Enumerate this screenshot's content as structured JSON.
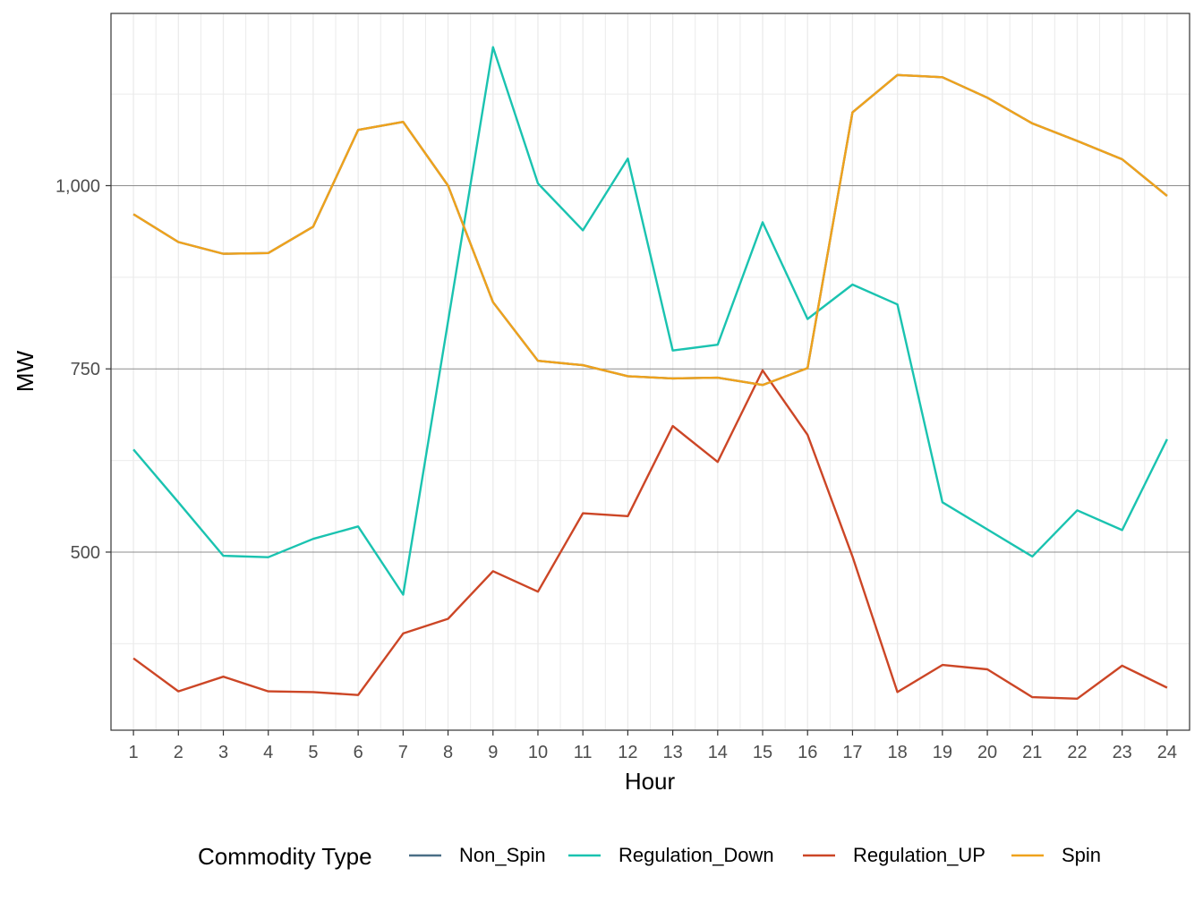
{
  "chart_data": {
    "type": "line",
    "xlabel": "Hour",
    "ylabel": "MW",
    "x": [
      1,
      2,
      3,
      4,
      5,
      6,
      7,
      8,
      9,
      10,
      11,
      12,
      13,
      14,
      15,
      16,
      17,
      18,
      19,
      20,
      21,
      22,
      23,
      24
    ],
    "x_tick_labels": [
      "1",
      "2",
      "3",
      "4",
      "5",
      "6",
      "7",
      "8",
      "9",
      "10",
      "11",
      "12",
      "13",
      "14",
      "15",
      "16",
      "17",
      "18",
      "19",
      "20",
      "21",
      "22",
      "23",
      "24"
    ],
    "y_ticks": [
      500,
      750,
      1000
    ],
    "y_tick_labels": [
      "500",
      "750",
      "1,000"
    ],
    "xlim": [
      0.5,
      24.5
    ],
    "ylim": [
      257,
      1235
    ],
    "grid": true,
    "legend": {
      "title": "Commodity Type",
      "position": "bottom"
    },
    "series": [
      {
        "name": "Non_Spin",
        "color": "#4a6f86",
        "values": [
          961,
          923,
          907,
          908,
          944,
          1076,
          1087,
          1000,
          841,
          761,
          755,
          740,
          737,
          738,
          728,
          751,
          1100,
          1151,
          1148,
          1120,
          1085,
          1061,
          1036,
          986
        ]
      },
      {
        "name": "Regulation_Down",
        "color": "#1ac3b0",
        "values": [
          640,
          568,
          495,
          493,
          518,
          535,
          442,
          815,
          1189,
          1003,
          939,
          1037,
          775,
          783,
          950,
          818,
          865,
          838,
          568,
          531,
          494,
          557,
          530,
          654
        ]
      },
      {
        "name": "Regulation_UP",
        "color": "#cc4626",
        "values": [
          355,
          310,
          330,
          310,
          309,
          305,
          389,
          409,
          474,
          446,
          553,
          549,
          672,
          623,
          748,
          660,
          494,
          309,
          346,
          340,
          302,
          300,
          345,
          315
        ]
      },
      {
        "name": "Spin",
        "color": "#efa21c",
        "values": [
          961,
          923,
          907,
          908,
          944,
          1076,
          1087,
          1000,
          841,
          761,
          755,
          740,
          737,
          738,
          728,
          751,
          1100,
          1151,
          1148,
          1120,
          1085,
          1061,
          1036,
          986
        ]
      }
    ]
  }
}
